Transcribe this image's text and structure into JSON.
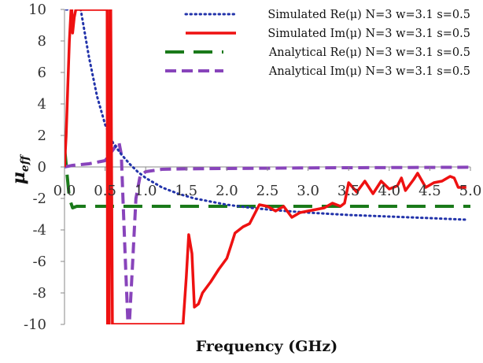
{
  "chart_data": {
    "type": "line",
    "xlabel": "Frequency (GHz)",
    "ylabel_main": "μ",
    "ylabel_sub": "eff",
    "xlim": [
      0,
      5
    ],
    "ylim": [
      -10,
      10
    ],
    "x_ticks": [
      "0.0",
      "0.5",
      "1.0",
      "1.5",
      "2.0",
      "2.5",
      "3.0",
      "3.5",
      "4.0",
      "4.5",
      "5.0"
    ],
    "y_ticks": [
      "-10",
      "-8",
      "-6",
      "-4",
      "-2",
      "0",
      "2",
      "4",
      "6",
      "8",
      "10"
    ],
    "grid": false,
    "legend_position": "top-right",
    "series": [
      {
        "name": "Simulated Re(μ) N=3 w=3.1 s=0.5",
        "color": "#2233aa",
        "style": "dotted",
        "points": [
          [
            0.02,
            10
          ],
          [
            0.2,
            10
          ],
          [
            0.3,
            7
          ],
          [
            0.4,
            4.5
          ],
          [
            0.5,
            2.7
          ],
          [
            0.6,
            1.5
          ],
          [
            0.7,
            0.8
          ],
          [
            0.8,
            0.2
          ],
          [
            0.9,
            -0.3
          ],
          [
            1.0,
            -0.7
          ],
          [
            1.2,
            -1.3
          ],
          [
            1.4,
            -1.7
          ],
          [
            1.6,
            -2.0
          ],
          [
            1.8,
            -2.2
          ],
          [
            2.0,
            -2.4
          ],
          [
            2.3,
            -2.6
          ],
          [
            2.6,
            -2.75
          ],
          [
            3.0,
            -2.9
          ],
          [
            3.5,
            -3.05
          ],
          [
            4.0,
            -3.15
          ],
          [
            4.5,
            -3.25
          ],
          [
            4.95,
            -3.35
          ]
        ]
      },
      {
        "name": "Simulated Im(μ) N=3 w=3.1 s=0.5",
        "color": "#ee1111",
        "style": "solid",
        "points": [
          [
            0.0,
            0
          ],
          [
            0.02,
            2
          ],
          [
            0.04,
            5
          ],
          [
            0.06,
            8
          ],
          [
            0.08,
            10
          ],
          [
            0.09,
            10
          ],
          [
            0.1,
            8.5
          ],
          [
            0.12,
            9.5
          ],
          [
            0.14,
            10
          ],
          [
            0.525,
            10
          ],
          [
            0.53,
            -10
          ],
          [
            0.55,
            -10
          ],
          [
            0.56,
            10
          ],
          [
            0.57,
            10
          ],
          [
            0.59,
            -10
          ],
          [
            1.46,
            -10
          ],
          [
            1.5,
            -7
          ],
          [
            1.53,
            -4.3
          ],
          [
            1.57,
            -5.5
          ],
          [
            1.6,
            -8.9
          ],
          [
            1.65,
            -8.7
          ],
          [
            1.7,
            -8
          ],
          [
            1.8,
            -7.3
          ],
          [
            1.9,
            -6.5
          ],
          [
            2.0,
            -5.8
          ],
          [
            2.05,
            -5.0
          ],
          [
            2.1,
            -4.2
          ],
          [
            2.2,
            -3.8
          ],
          [
            2.28,
            -3.6
          ],
          [
            2.35,
            -2.9
          ],
          [
            2.4,
            -2.4
          ],
          [
            2.5,
            -2.5
          ],
          [
            2.6,
            -2.8
          ],
          [
            2.7,
            -2.5
          ],
          [
            2.8,
            -3.2
          ],
          [
            2.9,
            -2.9
          ],
          [
            3.0,
            -2.8
          ],
          [
            3.1,
            -2.7
          ],
          [
            3.2,
            -2.6
          ],
          [
            3.3,
            -2.3
          ],
          [
            3.4,
            -2.5
          ],
          [
            3.45,
            -2.3
          ],
          [
            3.5,
            -1.0
          ],
          [
            3.6,
            -1.6
          ],
          [
            3.7,
            -0.9
          ],
          [
            3.8,
            -1.7
          ],
          [
            3.9,
            -0.9
          ],
          [
            4.0,
            -1.4
          ],
          [
            4.1,
            -1.2
          ],
          [
            4.15,
            -0.7
          ],
          [
            4.2,
            -1.5
          ],
          [
            4.3,
            -0.8
          ],
          [
            4.35,
            -0.4
          ],
          [
            4.45,
            -1.3
          ],
          [
            4.55,
            -1.0
          ],
          [
            4.65,
            -0.9
          ],
          [
            4.75,
            -0.6
          ],
          [
            4.8,
            -0.7
          ],
          [
            4.85,
            -1.3
          ],
          [
            4.95,
            -1.3
          ]
        ]
      },
      {
        "name": "Analytical Re(μ) N=3 w=3.1 s=0.5",
        "color": "#1a7a1a",
        "style": "dashed",
        "points": [
          [
            0.0,
            1.3
          ],
          [
            0.03,
            -0.4
          ],
          [
            0.06,
            -2.0
          ],
          [
            0.1,
            -2.6
          ],
          [
            0.15,
            -2.5
          ],
          [
            0.5,
            -2.5
          ],
          [
            1.0,
            -2.5
          ],
          [
            2.0,
            -2.5
          ],
          [
            3.0,
            -2.5
          ],
          [
            4.0,
            -2.5
          ],
          [
            5.0,
            -2.5
          ]
        ]
      },
      {
        "name": "Analytical Im(μ) N=3 w=3.1 s=0.5",
        "color": "#8844bb",
        "style": "dashed",
        "points": [
          [
            0.0,
            0
          ],
          [
            0.1,
            0.1
          ],
          [
            0.3,
            0.2
          ],
          [
            0.5,
            0.4
          ],
          [
            0.6,
            1.1
          ],
          [
            0.67,
            1.6
          ],
          [
            0.7,
            0.8
          ],
          [
            0.72,
            -2
          ],
          [
            0.75,
            -6
          ],
          [
            0.78,
            -9.8
          ],
          [
            0.8,
            -9.8
          ],
          [
            0.84,
            -6
          ],
          [
            0.88,
            -2
          ],
          [
            0.93,
            -0.6
          ],
          [
            1.0,
            -0.3
          ],
          [
            1.2,
            -0.15
          ],
          [
            1.5,
            -0.12
          ],
          [
            2.0,
            -0.1
          ],
          [
            3.0,
            -0.06
          ],
          [
            4.0,
            -0.04
          ],
          [
            5.0,
            -0.02
          ]
        ]
      }
    ]
  }
}
